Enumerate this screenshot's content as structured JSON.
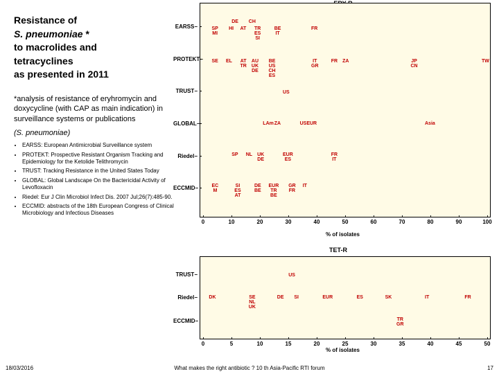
{
  "title": {
    "l1": "Resistance of",
    "l2_em": "S. pneumoniae",
    "l2_rest": " *",
    "l3": "to macrolides and",
    "l4": "tetracyclines",
    "l5": "as presented in 2011"
  },
  "note": {
    "t1": "*analysis of resistance of eryhromycin and doxycycline (with CAP as main indication) in surveillance systems or publications",
    "t2": "(S. pneumoniae)"
  },
  "bullets": [
    "EARSS: European Antimicrobial Surveillance system",
    "PROTEKT: Prospective Resistant Organism Tracking and Epidemiology for the Ketolide Telithromycin",
    "TRUST: Tracking Resistance in the United States Today",
    "GLOBAL: Global Landscape On the Bactericidal Activity of Levofloxacin",
    "Riedel: Eur J Clin Microbiol Infect Dis. 2007 Jul;26(7):485-90.",
    "ECCMID: abstracts of the 18th European Congress of Clinical Microbiology and Infectious Diseases"
  ],
  "chart1": {
    "title": "ERY-R",
    "background": "#fffbe6",
    "xaxis_title": "% of isolates",
    "ylabels": [
      "EARSS",
      "PROTEKT",
      "TRUST",
      "GLOBAL",
      "Riedel",
      "ECCMID"
    ],
    "xticks": [
      0,
      10,
      20,
      30,
      40,
      50,
      60,
      70,
      80,
      90,
      100
    ],
    "rows": [
      {
        "y": 38,
        "extra_top": [
          {
            "x": 12,
            "t": "DE"
          },
          {
            "x": 18,
            "t": "CH"
          }
        ],
        "pts": [
          {
            "x": 5,
            "t": "SP MI"
          },
          {
            "x": 11,
            "t": "HI"
          },
          {
            "x": 15,
            "t": "AT"
          },
          {
            "x": 20,
            "t": "TR ES SI"
          },
          {
            "x": 27,
            "t": "BE IT"
          },
          {
            "x": 40,
            "t": "FR"
          }
        ]
      },
      {
        "y": 85,
        "pts": [
          {
            "x": 5,
            "t": "SE"
          },
          {
            "x": 10,
            "t": "EL"
          },
          {
            "x": 15,
            "t": "AT TR"
          },
          {
            "x": 19,
            "t": "AU UK DE"
          },
          {
            "x": 25,
            "t": "BE US CH ES"
          },
          {
            "x": 40,
            "t": "IT GR"
          },
          {
            "x": 47,
            "t": "FR"
          },
          {
            "x": 51,
            "t": "ZA"
          },
          {
            "x": 75,
            "t": "JP CN"
          },
          {
            "x": 100,
            "t": "TW"
          }
        ]
      },
      {
        "y": 130,
        "pts": [
          {
            "x": 30,
            "t": "US"
          }
        ]
      },
      {
        "y": 175,
        "pts": [
          {
            "x": 23,
            "t": "LAm"
          },
          {
            "x": 27,
            "t": "ZA"
          },
          {
            "x": 36,
            "t": "USEUR"
          },
          {
            "x": 80,
            "t": "Asia"
          }
        ]
      },
      {
        "y": 220,
        "pts": [
          {
            "x": 12,
            "t": "SP"
          },
          {
            "x": 17,
            "t": "NL"
          },
          {
            "x": 21,
            "t": "UK DE"
          },
          {
            "x": 30,
            "t": "EUR ES"
          },
          {
            "x": 47,
            "t": "FR IT"
          }
        ]
      },
      {
        "y": 265,
        "pts": [
          {
            "x": 5,
            "t": "EC M"
          },
          {
            "x": 13,
            "t": "SI ES AT"
          },
          {
            "x": 20,
            "t": "DE BE"
          },
          {
            "x": 25,
            "t": "EUR TR BE"
          },
          {
            "x": 32,
            "t": "GR FR"
          },
          {
            "x": 37,
            "t": "IT"
          }
        ]
      }
    ]
  },
  "chart2": {
    "title": "TET-R",
    "background": "#fffbe6",
    "xaxis_title": "% of isolates",
    "ylabels": [
      "TRUST",
      "Riedel",
      "ECCMID"
    ],
    "xticks": [
      0,
      5,
      10,
      15,
      20,
      25,
      30,
      35,
      40,
      45,
      50
    ],
    "rows": [
      {
        "y": 28,
        "pts": [
          {
            "x": 16,
            "t": "US"
          }
        ]
      },
      {
        "y": 60,
        "pts": [
          {
            "x": 2,
            "t": "DK"
          },
          {
            "x": 9,
            "t": "SE NL UK"
          },
          {
            "x": 14,
            "t": "DE"
          },
          {
            "x": 17,
            "t": "SI"
          },
          {
            "x": 22,
            "t": "EUR"
          },
          {
            "x": 28,
            "t": "ES"
          },
          {
            "x": 33,
            "t": "SK"
          },
          {
            "x": 40,
            "t": "IT"
          },
          {
            "x": 47,
            "t": "FR"
          }
        ]
      },
      {
        "y": 92,
        "pts": [
          {
            "x": 35,
            "t": "TR GR"
          }
        ]
      }
    ]
  },
  "footer": {
    "date": "18/03/2016",
    "center": "What makes the right antibiotic ? 10 th Asia-Pacific RTI forum",
    "page": "17"
  },
  "colors": {
    "country": "#c00000",
    "chartbg": "#fffbe6"
  }
}
